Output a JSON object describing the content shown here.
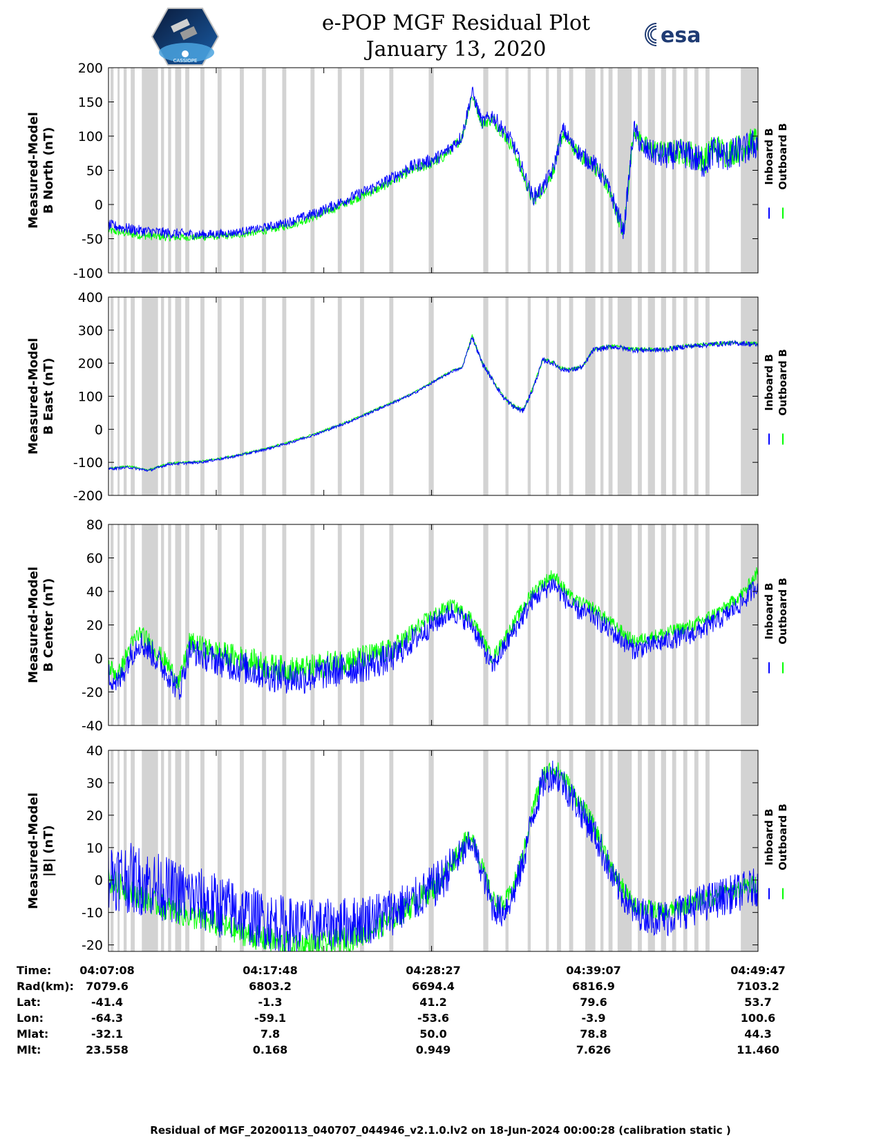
{
  "header": {
    "title_line1": "e-POP MGF Residual Plot",
    "title_line2": "January 13, 2020",
    "logo_left": "cassiope-mission-logo",
    "logo_left_text": "CASSIOPE",
    "logo_right": "esa-logo",
    "logo_right_text": "esa"
  },
  "colors": {
    "inboard": "#0000ff",
    "outboard": "#00ff00",
    "gap": "#d3d3d3"
  },
  "chart_data": [
    {
      "type": "line",
      "ylabel_line1": "Measured-Model",
      "ylabel_line2": "B North (nT)",
      "ylim": [
        -100,
        200
      ],
      "yticks": [
        -100,
        -50,
        0,
        50,
        100,
        150,
        200
      ],
      "legend": [
        "Inboard B",
        "Outboard B"
      ],
      "x_minutes": [
        0,
        3,
        6,
        9,
        12,
        15,
        18,
        21,
        24,
        27,
        30,
        32,
        33,
        34,
        35,
        36,
        37,
        38,
        40,
        41,
        42,
        43,
        44,
        45,
        46,
        47,
        48,
        49,
        50,
        51,
        52,
        53,
        55,
        57,
        59,
        60,
        61,
        62,
        63,
        64.3
      ],
      "series": [
        {
          "name": "Inboard B",
          "values": [
            -30,
            -38,
            -42,
            -44,
            -42,
            -35,
            -25,
            -10,
            10,
            30,
            55,
            65,
            72,
            85,
            100,
            165,
            120,
            130,
            90,
            50,
            10,
            25,
            50,
            110,
            85,
            70,
            60,
            40,
            5,
            -40,
            110,
            80,
            70,
            75,
            60,
            80,
            70,
            75,
            80,
            90
          ],
          "noise": [
            8,
            8,
            8,
            7,
            6,
            6,
            7,
            8,
            8,
            9,
            10,
            10,
            10,
            10,
            10,
            10,
            10,
            12,
            12,
            12,
            12,
            12,
            12,
            12,
            12,
            14,
            14,
            14,
            14,
            14,
            16,
            18,
            20,
            22,
            24,
            24,
            24,
            24,
            24,
            24
          ]
        },
        {
          "name": "Outboard B",
          "values": [
            -38,
            -45,
            -48,
            -48,
            -46,
            -40,
            -30,
            -15,
            5,
            25,
            50,
            60,
            68,
            82,
            98,
            160,
            118,
            126,
            85,
            45,
            5,
            22,
            48,
            105,
            82,
            68,
            58,
            38,
            2,
            -42,
            112,
            85,
            75,
            78,
            65,
            85,
            75,
            80,
            85,
            95
          ],
          "noise": [
            6,
            6,
            6,
            5,
            5,
            5,
            6,
            6,
            6,
            7,
            8,
            8,
            8,
            8,
            8,
            8,
            8,
            10,
            10,
            10,
            10,
            10,
            10,
            10,
            10,
            12,
            12,
            12,
            12,
            12,
            14,
            16,
            18,
            20,
            22,
            22,
            22,
            22,
            22,
            22
          ]
        }
      ]
    },
    {
      "type": "line",
      "ylabel_line1": "Measured-Model",
      "ylabel_line2": "B East (nT)",
      "ylim": [
        -200,
        400
      ],
      "yticks": [
        -200,
        -100,
        0,
        100,
        200,
        300,
        400
      ],
      "legend": [
        "Inboard B",
        "Outboard B"
      ],
      "x_minutes": [
        0,
        2,
        4,
        6,
        9,
        12,
        15,
        18,
        21,
        24,
        27,
        30,
        32,
        34,
        35,
        36,
        37,
        38,
        39,
        40,
        41,
        42,
        43,
        44,
        45,
        46,
        47,
        48,
        50,
        52,
        55,
        57,
        59,
        61,
        63,
        64.3
      ],
      "series": [
        {
          "name": "Inboard B",
          "values": [
            -120,
            -115,
            -125,
            -105,
            -100,
            -85,
            -65,
            -40,
            -10,
            25,
            65,
            105,
            140,
            175,
            185,
            280,
            200,
            150,
            100,
            70,
            55,
            120,
            210,
            200,
            180,
            180,
            190,
            240,
            250,
            240,
            240,
            250,
            255,
            260,
            260,
            255
          ],
          "noise": [
            4,
            4,
            4,
            4,
            4,
            4,
            4,
            4,
            4,
            4,
            4,
            4,
            4,
            4,
            4,
            8,
            8,
            8,
            8,
            8,
            8,
            8,
            8,
            8,
            8,
            8,
            8,
            8,
            8,
            8,
            8,
            8,
            8,
            8,
            8,
            8
          ]
        },
        {
          "name": "Outboard B",
          "values": [
            -118,
            -112,
            -123,
            -103,
            -98,
            -83,
            -63,
            -38,
            -8,
            27,
            67,
            107,
            142,
            177,
            187,
            282,
            202,
            152,
            102,
            72,
            57,
            122,
            212,
            202,
            182,
            182,
            192,
            242,
            252,
            242,
            242,
            252,
            257,
            262,
            262,
            257
          ],
          "noise": [
            3,
            3,
            3,
            3,
            3,
            3,
            3,
            3,
            3,
            3,
            3,
            3,
            3,
            3,
            3,
            6,
            6,
            6,
            6,
            6,
            6,
            6,
            6,
            6,
            6,
            6,
            6,
            6,
            6,
            6,
            6,
            6,
            6,
            6,
            6,
            6
          ]
        }
      ]
    },
    {
      "type": "line",
      "ylabel_line1": "Measured-Model",
      "ylabel_line2": "B Center (nT)",
      "ylim": [
        -40,
        80
      ],
      "yticks": [
        -40,
        -20,
        0,
        20,
        40,
        60,
        80
      ],
      "legend": [
        "Inboard B",
        "Outboard B"
      ],
      "x_minutes": [
        0,
        1,
        2,
        3,
        4,
        6,
        7,
        8,
        10,
        13,
        16,
        19,
        22,
        25,
        28,
        30,
        32,
        34,
        36,
        38,
        40,
        42,
        44,
        46,
        48,
        50,
        52,
        55,
        58,
        61,
        63,
        64.3
      ],
      "series": [
        {
          "name": "Inboard B",
          "values": [
            -10,
            -15,
            0,
            10,
            5,
            -10,
            -20,
            5,
            0,
            -5,
            -10,
            -12,
            -8,
            -5,
            0,
            10,
            20,
            28,
            20,
            -5,
            15,
            35,
            45,
            30,
            25,
            15,
            5,
            10,
            15,
            25,
            35,
            45
          ],
          "noise": [
            8,
            8,
            8,
            8,
            8,
            8,
            8,
            8,
            9,
            10,
            10,
            10,
            10,
            10,
            9,
            8,
            7,
            6,
            6,
            6,
            6,
            6,
            6,
            6,
            6,
            6,
            6,
            6,
            6,
            6,
            6,
            6
          ]
        },
        {
          "name": "Outboard B",
          "values": [
            -5,
            -10,
            5,
            15,
            10,
            -5,
            -15,
            10,
            5,
            0,
            -5,
            -7,
            -3,
            0,
            5,
            15,
            25,
            32,
            24,
            0,
            20,
            40,
            50,
            35,
            30,
            20,
            10,
            15,
            20,
            30,
            40,
            52
          ],
          "noise": [
            6,
            6,
            6,
            6,
            6,
            6,
            6,
            6,
            7,
            8,
            8,
            8,
            8,
            8,
            7,
            6,
            5,
            4,
            4,
            4,
            4,
            4,
            4,
            4,
            4,
            4,
            4,
            4,
            4,
            4,
            4,
            4
          ]
        }
      ]
    },
    {
      "type": "line",
      "ylabel_line1": "Measured-Model",
      "ylabel_line2": "|B| (nT)",
      "ylim": [
        -22,
        40
      ],
      "yticks": [
        -20,
        -10,
        0,
        10,
        20,
        30,
        40
      ],
      "legend": [
        "Inboard B",
        "Outboard B"
      ],
      "x_minutes": [
        0,
        3,
        6,
        9,
        12,
        15,
        18,
        21,
        24,
        27,
        30,
        33,
        34,
        35,
        36,
        37,
        38,
        39,
        40,
        41,
        42,
        43,
        44,
        45,
        46,
        47,
        48,
        49,
        50,
        51,
        52,
        55,
        58,
        61,
        64.3
      ],
      "series": [
        {
          "name": "Inboard B",
          "values": [
            2,
            0,
            -3,
            -6,
            -9,
            -12,
            -14,
            -14,
            -13,
            -11,
            -7,
            0,
            5,
            8,
            12,
            2,
            -8,
            -10,
            -5,
            5,
            20,
            30,
            33,
            30,
            25,
            20,
            15,
            8,
            0,
            -5,
            -10,
            -12,
            -8,
            -5,
            -2
          ],
          "noise": [
            11,
            11,
            10,
            10,
            10,
            9,
            9,
            8,
            8,
            8,
            7,
            7,
            6,
            5,
            4,
            4,
            5,
            5,
            5,
            5,
            5,
            5,
            5,
            5,
            5,
            5,
            5,
            5,
            5,
            5,
            5,
            6,
            6,
            6,
            6
          ]
        },
        {
          "name": "Outboard B",
          "values": [
            0,
            -5,
            -9,
            -12,
            -15,
            -18,
            -20,
            -20,
            -18,
            -14,
            -8,
            0,
            6,
            10,
            14,
            4,
            -6,
            -8,
            -3,
            7,
            22,
            32,
            35,
            32,
            27,
            22,
            17,
            10,
            2,
            -3,
            -8,
            -10,
            -7,
            -4,
            -1
          ],
          "noise": [
            4,
            4,
            4,
            4,
            4,
            4,
            4,
            4,
            4,
            4,
            4,
            4,
            4,
            4,
            3,
            3,
            3,
            3,
            3,
            3,
            3,
            3,
            3,
            3,
            3,
            3,
            3,
            3,
            3,
            3,
            3,
            3,
            3,
            3,
            3
          ]
        }
      ]
    }
  ],
  "gap_intervals_minutes": [
    [
      0.2,
      0.5
    ],
    [
      0.9,
      1.1
    ],
    [
      1.5,
      1.8
    ],
    [
      2.2,
      2.6
    ],
    [
      3.3,
      4.9
    ],
    [
      5.2,
      5.5
    ],
    [
      5.9,
      6.2
    ],
    [
      6.6,
      7.2
    ],
    [
      7.6,
      8.0
    ],
    [
      9.1,
      9.5
    ],
    [
      10.8,
      11.2
    ],
    [
      13.0,
      13.4
    ],
    [
      15.2,
      15.6
    ],
    [
      17.2,
      17.6
    ],
    [
      20.0,
      20.4
    ],
    [
      22.7,
      23.1
    ],
    [
      24.9,
      25.3
    ],
    [
      27.8,
      28.2
    ],
    [
      31.7,
      32.2
    ],
    [
      37.1,
      37.6
    ],
    [
      39.3,
      39.6
    ],
    [
      41.5,
      41.8
    ],
    [
      43.3,
      43.6
    ],
    [
      44.4,
      44.8
    ],
    [
      45.6,
      46.0
    ],
    [
      47.2,
      48.2
    ],
    [
      48.7,
      49.0
    ],
    [
      49.5,
      49.9
    ],
    [
      50.4,
      51.8
    ],
    [
      52.4,
      52.8
    ],
    [
      53.4,
      54.1
    ],
    [
      54.7,
      55.2
    ],
    [
      55.8,
      56.2
    ],
    [
      56.9,
      57.3
    ],
    [
      58.0,
      58.4
    ],
    [
      59.1,
      59.5
    ],
    [
      62.6,
      64.3
    ]
  ],
  "ephemeris": {
    "labels": [
      "Time:",
      "Rad(km):",
      "Lat:",
      "Lon:",
      "Mlat:",
      "Mlt:"
    ],
    "columns": [
      [
        "04:07:08",
        "7079.6",
        "-41.4",
        "-64.3",
        "-32.1",
        "23.558"
      ],
      [
        "04:17:48",
        "6803.2",
        "-1.3",
        "-59.1",
        "7.8",
        "0.168"
      ],
      [
        "04:28:27",
        "6694.4",
        "41.2",
        "-53.6",
        "50.0",
        "0.949"
      ],
      [
        "04:39:07",
        "6816.9",
        "79.6",
        "-3.9",
        "78.8",
        "7.626"
      ],
      [
        "04:49:47",
        "7103.2",
        "53.7",
        "100.6",
        "44.3",
        "11.460"
      ]
    ]
  },
  "footnote": "Residual of MGF_20200113_040707_044946_v2.1.0.lv2 on 18-Jun-2024 00:00:28 (calibration static )"
}
